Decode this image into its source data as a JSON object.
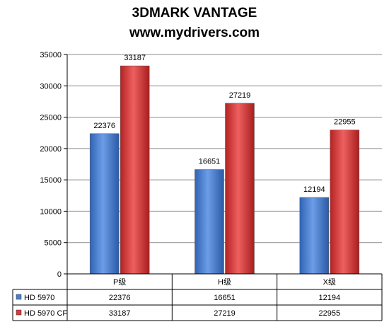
{
  "chart_data": {
    "type": "bar",
    "title": "3DMARK VANTAGE",
    "subtitle": "www.mydrivers.com",
    "categories": [
      "P级",
      "H级",
      "X级"
    ],
    "series": [
      {
        "name": "HD 5970",
        "values": [
          22376,
          16651,
          12194
        ],
        "color": "#4a7fd0"
      },
      {
        "name": "HD 5970 CF",
        "values": [
          33187,
          27219,
          22955
        ],
        "color": "#d63b3b"
      }
    ],
    "ylim": [
      0,
      35000
    ],
    "yticks": [
      0,
      5000,
      10000,
      15000,
      20000,
      25000,
      30000,
      35000
    ],
    "grid": true,
    "data_table": true
  }
}
